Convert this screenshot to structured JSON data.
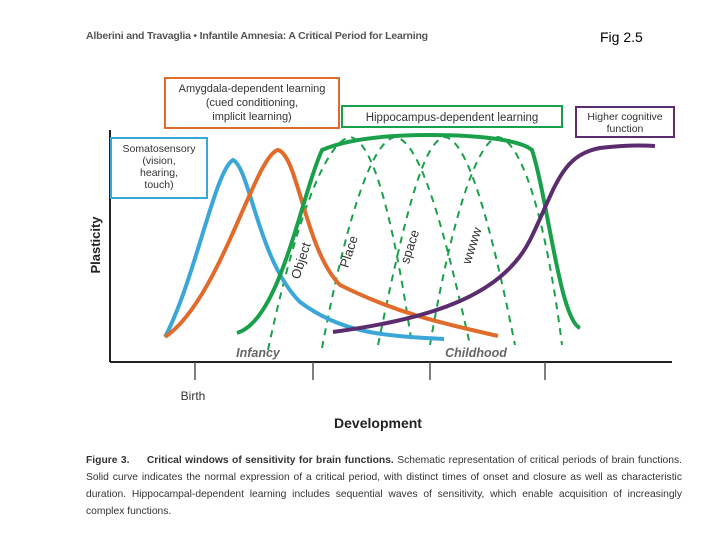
{
  "header": {
    "running_head": "Alberini and Travaglia • Infantile Amnesia: A Critical Period for Learning",
    "fig_label": "Fig 2.5"
  },
  "diagram": {
    "y_axis_label": "Plasticity",
    "x_axis_label": "Development",
    "x_ticks": [
      "Birth"
    ],
    "stage_labels": [
      "Infancy",
      "Childhood"
    ],
    "boxes": {
      "amygdala": {
        "lines": [
          "Amygdala-dependent learning",
          "(cued conditioning,",
          "implicit learning)"
        ],
        "color": "#e06b2a"
      },
      "hippocampus": {
        "lines": [
          "Hippocampus-dependent learning"
        ],
        "color": "#1aa04a"
      },
      "higher": {
        "lines": [
          "Higher cognitive",
          "function"
        ],
        "color": "#5b2d6e"
      },
      "somato": {
        "lines": [
          "Somatosensory",
          "(vision,",
          "hearing,",
          "touch)"
        ],
        "color": "#3ba6d8"
      }
    },
    "wave_labels": [
      "Object",
      "Place",
      "space",
      "wwww"
    ],
    "colors": {
      "somatosensory": "#3ba6d8",
      "amygdala": "#e06b2a",
      "hippocampus": "#1aa04a",
      "higher": "#5b2d6e",
      "axis": "#222222"
    }
  },
  "caption": {
    "title": "Figure 3.",
    "lead": "Critical windows of sensitivity for brain functions.",
    "body": "Schematic representation of critical periods of brain functions. Solid curve indicates the normal expression of a critical period, with distinct times of onset and closure as well as characteristic duration. Hippocampal-dependent learning includes sequential waves of sensitivity, which enable acquisition of increasingly complex functions."
  }
}
